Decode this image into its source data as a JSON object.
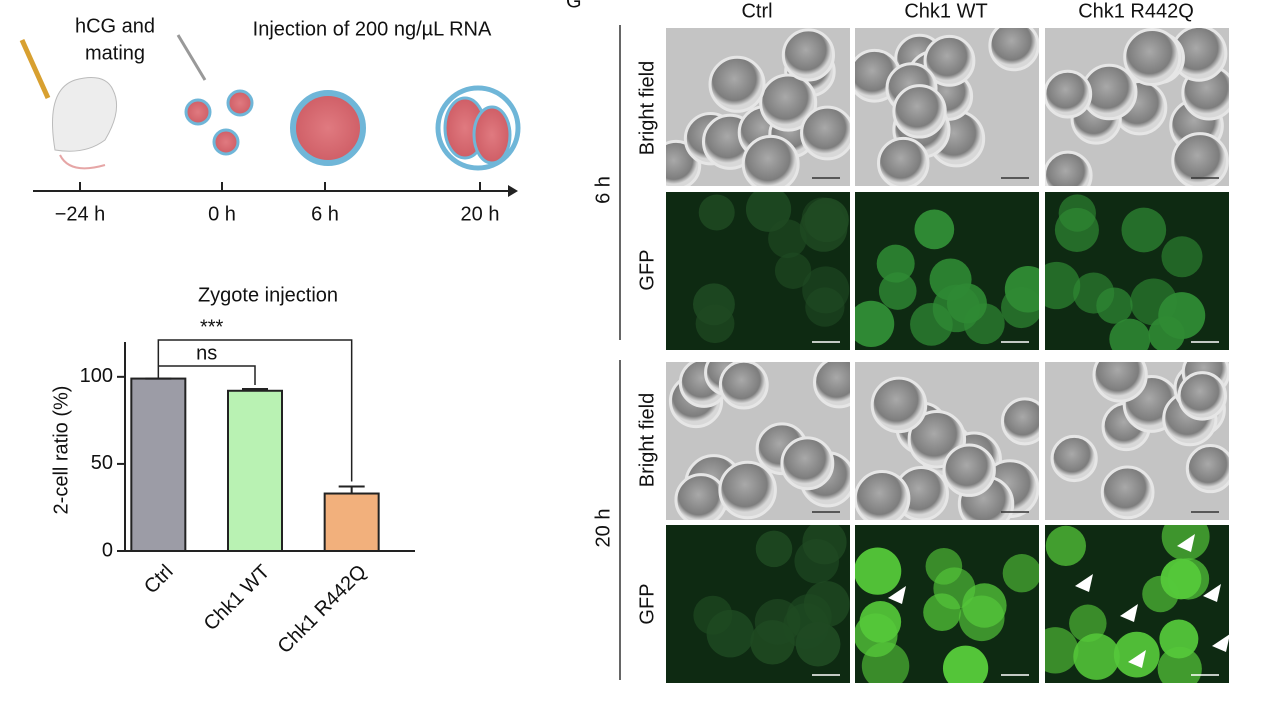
{
  "timeline": {
    "labels": [
      "hCG and",
      "mating",
      "Injection of 200 ng/µL RNA"
    ],
    "ticks": [
      "−24 h",
      "0 h",
      "6 h",
      "20 h"
    ]
  },
  "chart_data": {
    "type": "bar",
    "title": "Zygote injection",
    "y_label": "2-cell ratio (%)",
    "categories": [
      "Ctrl",
      "Chk1 WT",
      "Chk1 R442Q"
    ],
    "values": [
      99,
      92,
      33
    ],
    "errors": [
      0,
      1,
      4
    ],
    "colors": [
      "#9c9ca6",
      "#b9f2b3",
      "#f2b07c"
    ],
    "ylim": [
      0,
      120
    ],
    "yticks": [
      0,
      50,
      100
    ],
    "annotations": [
      "ns",
      "***"
    ]
  },
  "panel": {
    "label": "G",
    "columns": [
      "Ctrl",
      "Chk1 WT",
      "Chk1 R442Q"
    ],
    "timepoints": [
      "6 h",
      "20 h"
    ],
    "channels": [
      "Bright field",
      "GFP"
    ]
  }
}
